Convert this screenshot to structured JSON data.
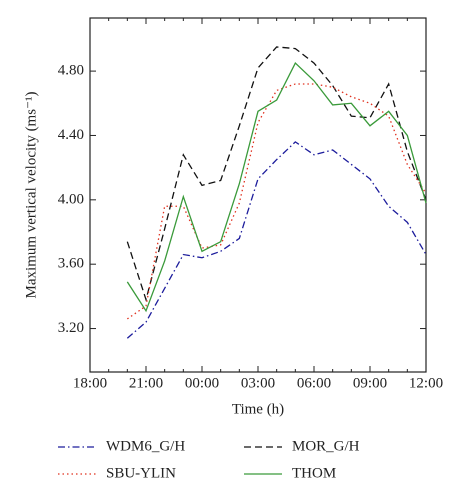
{
  "chart_data": {
    "type": "line",
    "xlabel": "Time (h)",
    "ylabel": "Maximum vertical velocity (ms⁻¹)",
    "categories": [
      "18:00",
      null,
      null,
      "21:00",
      null,
      null,
      "00:00",
      null,
      null,
      "03:00",
      null,
      null,
      "06:00",
      null,
      null,
      "09:00",
      null,
      null,
      "12:00"
    ],
    "ylim": [
      2.93,
      5.13
    ],
    "yticks": [
      {
        "value": 3.2,
        "label": "3.20"
      },
      {
        "value": 3.6,
        "label": "3.60"
      },
      {
        "value": 4.0,
        "label": "4.00"
      },
      {
        "value": 4.4,
        "label": "4.40"
      },
      {
        "value": 4.8,
        "label": "4.80"
      }
    ],
    "grid": false,
    "legend": "bottom",
    "series": [
      {
        "name": "WDM6_G/H",
        "color": "#1c1c9c",
        "linestyle": "dashdot",
        "values": [
          null,
          null,
          3.14,
          3.24,
          3.45,
          3.66,
          3.64,
          3.68,
          3.76,
          4.13,
          4.25,
          4.36,
          4.28,
          4.31,
          4.22,
          4.13,
          3.96,
          3.86,
          3.66
        ]
      },
      {
        "name": "MOR_G/H",
        "color": "#111111",
        "linestyle": "dashed",
        "values": [
          null,
          null,
          3.74,
          3.38,
          3.82,
          4.28,
          4.09,
          4.12,
          4.46,
          4.82,
          4.95,
          4.94,
          4.85,
          4.71,
          4.52,
          4.51,
          4.72,
          4.3,
          4.0
        ]
      },
      {
        "name": "SBU-YLIN",
        "color": "#e0301e",
        "linestyle": "dotted",
        "values": [
          null,
          null,
          3.26,
          3.34,
          3.96,
          3.96,
          3.7,
          3.72,
          3.98,
          4.48,
          4.68,
          4.72,
          4.72,
          4.7,
          4.64,
          4.6,
          4.52,
          4.22,
          4.04
        ]
      },
      {
        "name": "THOM",
        "color": "#3a9a3a",
        "linestyle": "solid",
        "values": [
          null,
          null,
          3.49,
          3.31,
          3.62,
          4.02,
          3.68,
          3.74,
          4.1,
          4.55,
          4.62,
          4.85,
          4.74,
          4.59,
          4.6,
          4.46,
          4.55,
          4.4,
          3.98
        ]
      }
    ]
  }
}
